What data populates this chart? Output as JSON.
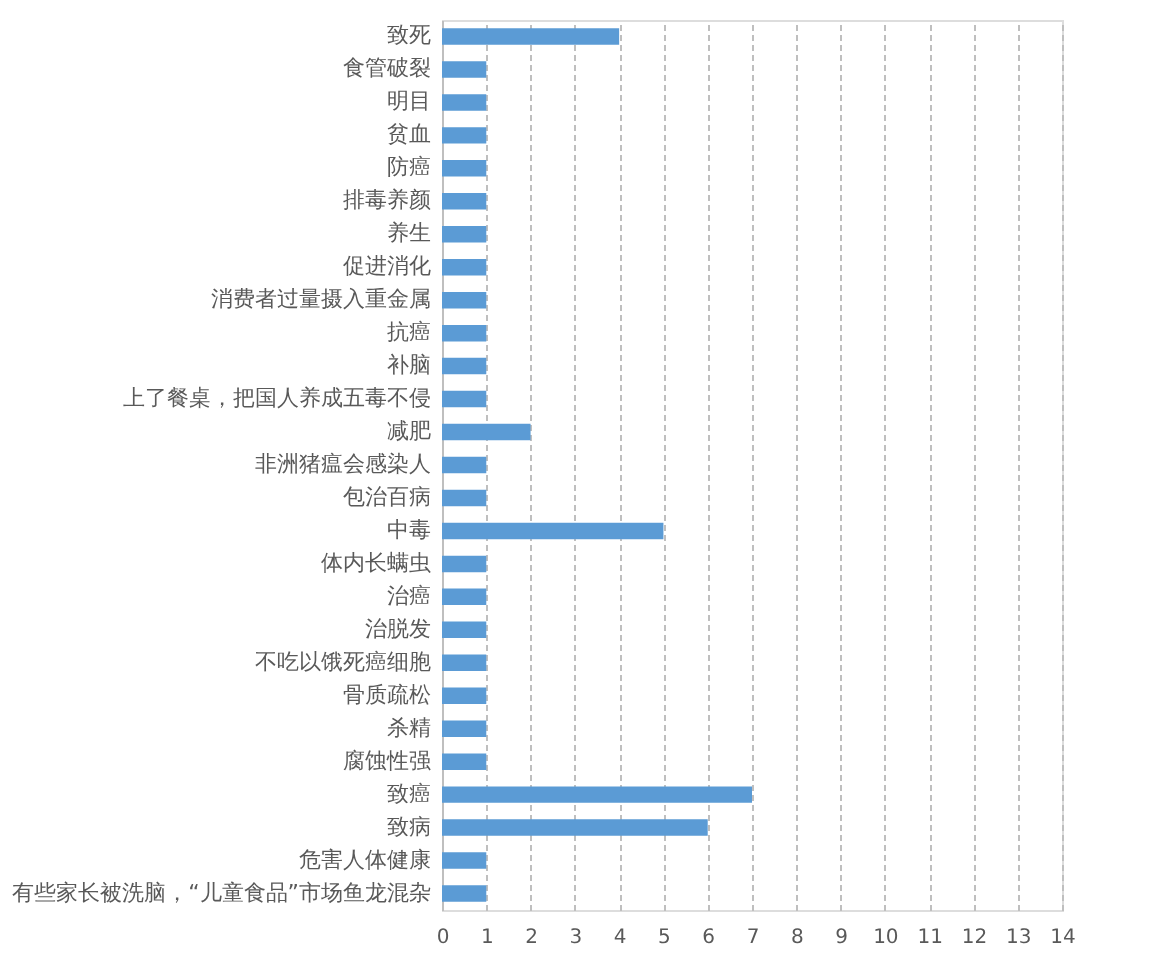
{
  "chart_data": {
    "type": "bar",
    "orientation": "horizontal",
    "categories": [
      "致死",
      "食管破裂",
      "明目",
      "贫血",
      "防癌",
      "排毒养颜",
      "养生",
      "促进消化",
      "消费者过量摄入重金属",
      "抗癌",
      "补脑",
      "上了餐桌，把国人养成五毒不侵",
      "减肥",
      "非洲猪瘟会感染人",
      "包治百病",
      "中毒",
      "体内长螨虫",
      "治癌",
      "治脱发",
      "不吃以饿死癌细胞",
      "骨质疏松",
      "杀精",
      "腐蚀性强",
      "致癌",
      "致病",
      "危害人体健康",
      "有些家长被洗脑，“儿童食品”市场鱼龙混杂"
    ],
    "values": [
      4,
      1,
      1,
      1,
      1,
      1,
      1,
      1,
      1,
      1,
      1,
      1,
      2,
      1,
      1,
      5,
      1,
      1,
      1,
      1,
      1,
      1,
      1,
      7,
      6,
      1,
      1
    ],
    "color": "#5b9bd5",
    "xlim": [
      0,
      14
    ],
    "xticks": [
      0,
      1,
      2,
      3,
      4,
      5,
      6,
      7,
      8,
      9,
      10,
      11,
      12,
      13,
      14
    ],
    "grid": "x"
  }
}
